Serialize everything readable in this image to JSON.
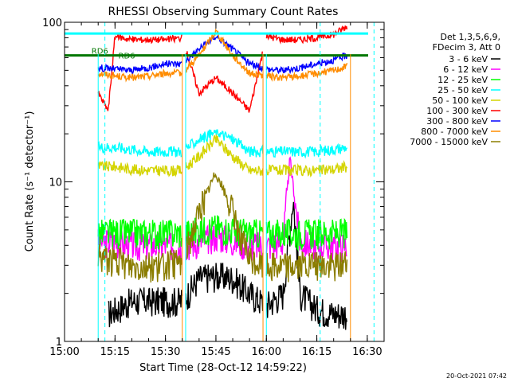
{
  "chart_data": {
    "type": "line",
    "title": "RHESSI Observing Summary Count Rates",
    "xlabel": "Start Time (28-Oct-12 14:59:22)",
    "ylabel": "Count Rate (s⁻¹ detector⁻¹)",
    "y_scale": "log",
    "ylim": [
      1,
      100
    ],
    "xlim": [
      "15:00",
      "16:35"
    ],
    "x_ticks": [
      "15:00",
      "15:15",
      "15:30",
      "15:45",
      "16:00",
      "16:15",
      "16:30"
    ],
    "y_ticks": [
      "1",
      "10",
      "100"
    ],
    "grid": false,
    "legend_position": "right",
    "legend_header": [
      "Det 1,3,5,6,9,",
      "FDecim 3, Att 0"
    ],
    "timestamp": "20-Oct-2021 07:42",
    "annotations": [
      {
        "text": "RD6",
        "x": "15:08",
        "y": 62
      },
      {
        "text": "RD6",
        "x": "15:16",
        "y": 58
      }
    ],
    "reference_lines": {
      "cyan_level": 85,
      "green_level": 62,
      "cyan_dashed_x": [
        "15:12",
        "16:16",
        "16:32"
      ]
    },
    "gaps": [
      [
        "15:00",
        "15:10"
      ],
      [
        "15:35",
        "15:36"
      ],
      [
        "15:59",
        "16:00"
      ],
      [
        "16:25",
        "16:35"
      ]
    ],
    "series": [
      {
        "name": "3 - 6 keV",
        "color": "#000000",
        "style": "noisy",
        "x": [
          "15:13",
          "15:20",
          "15:25",
          "15:35",
          "15:40",
          "15:45",
          "15:50",
          "15:55",
          "16:00",
          "16:05",
          "16:08",
          "16:10",
          "16:15",
          "16:20",
          "16:24"
        ],
        "values": [
          1.5,
          1.8,
          1.8,
          1.8,
          2.5,
          2.6,
          2.5,
          2.0,
          1.7,
          2.0,
          8.0,
          2.0,
          1.6,
          1.5,
          1.5
        ]
      },
      {
        "name": "6 - 12 keV",
        "color": "#ff00ff",
        "style": "noisy",
        "x": [
          "15:10",
          "15:15",
          "15:20",
          "15:25",
          "15:30",
          "15:35",
          "15:40",
          "15:45",
          "15:50",
          "15:55",
          "16:00",
          "16:05",
          "16:07",
          "16:10",
          "16:15",
          "16:20",
          "16:24"
        ],
        "values": [
          4.2,
          4.2,
          4.0,
          4.0,
          4.0,
          4.0,
          4.2,
          4.6,
          4.3,
          4.0,
          4.0,
          4.2,
          14.0,
          4.2,
          4.0,
          4.0,
          4.0
        ]
      },
      {
        "name": "12 - 25 keV",
        "color": "#00ff00",
        "style": "noisy",
        "x": [
          "15:10",
          "15:15",
          "15:20",
          "15:25",
          "15:30",
          "15:35",
          "15:40",
          "15:45",
          "15:50",
          "15:55",
          "16:00",
          "16:05",
          "16:10",
          "16:15",
          "16:20",
          "16:24"
        ],
        "values": [
          4.8,
          4.8,
          4.8,
          4.8,
          4.8,
          4.8,
          5.0,
          5.2,
          5.0,
          4.8,
          4.8,
          4.8,
          4.8,
          4.8,
          4.8,
          4.8
        ]
      },
      {
        "name": "25 - 50 keV",
        "color": "#00ffff",
        "style": "noisy",
        "x": [
          "15:10",
          "15:15",
          "15:20",
          "15:25",
          "15:30",
          "15:35",
          "15:40",
          "15:45",
          "15:50",
          "15:55",
          "16:00",
          "16:05",
          "16:10",
          "16:15",
          "16:20",
          "16:24"
        ],
        "values": [
          16.5,
          16.5,
          16.0,
          15.5,
          15.5,
          15.5,
          18.5,
          20.5,
          18.5,
          15.5,
          15.5,
          15.5,
          15.5,
          15.5,
          16.0,
          16.5
        ]
      },
      {
        "name": "50 - 100 keV",
        "color": "#d4d400",
        "style": "noisy",
        "x": [
          "15:10",
          "15:15",
          "15:20",
          "15:25",
          "15:30",
          "15:35",
          "15:40",
          "15:45",
          "15:50",
          "15:55",
          "16:00",
          "16:05",
          "16:10",
          "16:15",
          "16:20",
          "16:24"
        ],
        "values": [
          12.5,
          12.5,
          12.0,
          11.8,
          11.8,
          11.8,
          14.5,
          18.5,
          14.5,
          11.8,
          11.8,
          11.8,
          11.8,
          11.8,
          12.0,
          12.5
        ]
      },
      {
        "name": "100 - 300 keV",
        "color": "#ff0000",
        "style": "noisy",
        "x": [
          "15:10",
          "15:13",
          "15:15",
          "15:20",
          "15:25",
          "15:30",
          "15:35",
          "15:40",
          "15:45",
          "15:50",
          "15:55",
          "16:00",
          "16:05",
          "16:10",
          "16:15",
          "16:20",
          "16:24"
        ],
        "values": [
          36,
          28,
          82,
          78,
          78,
          78,
          80,
          36,
          45,
          36,
          28,
          82,
          78,
          78,
          80,
          84,
          95
        ]
      },
      {
        "name": "300 - 800 keV",
        "color": "#0000ff",
        "style": "noisy",
        "x": [
          "15:10",
          "15:15",
          "15:20",
          "15:25",
          "15:30",
          "15:35",
          "15:40",
          "15:45",
          "15:50",
          "15:55",
          "16:00",
          "16:05",
          "16:10",
          "16:15",
          "16:20",
          "16:24"
        ],
        "values": [
          52,
          51,
          50,
          52,
          55,
          55,
          68,
          82,
          68,
          55,
          51,
          50,
          52,
          55,
          58,
          62
        ]
      },
      {
        "name": "800 - 7000 keV",
        "color": "#ff8c00",
        "style": "noisy",
        "x": [
          "15:10",
          "15:15",
          "15:20",
          "15:25",
          "15:30",
          "15:35",
          "15:40",
          "15:45",
          "15:50",
          "15:55",
          "16:00",
          "16:05",
          "16:10",
          "16:15",
          "16:20",
          "16:24"
        ],
        "values": [
          48,
          46,
          45,
          46,
          48,
          48,
          62,
          88,
          62,
          48,
          46,
          45,
          46,
          48,
          50,
          53
        ]
      },
      {
        "name": "7000 - 15000 keV",
        "color": "#8b7d00",
        "style": "noisy",
        "x": [
          "15:10",
          "15:15",
          "15:20",
          "15:25",
          "15:30",
          "15:35",
          "15:40",
          "15:45",
          "15:50",
          "15:55",
          "16:00",
          "16:05",
          "16:10",
          "16:15",
          "16:20",
          "16:24"
        ],
        "values": [
          3.5,
          3.2,
          3.0,
          3.0,
          3.0,
          3.2,
          6.5,
          11.5,
          6.5,
          3.2,
          3.0,
          3.0,
          3.0,
          3.0,
          3.0,
          3.2
        ]
      }
    ]
  }
}
